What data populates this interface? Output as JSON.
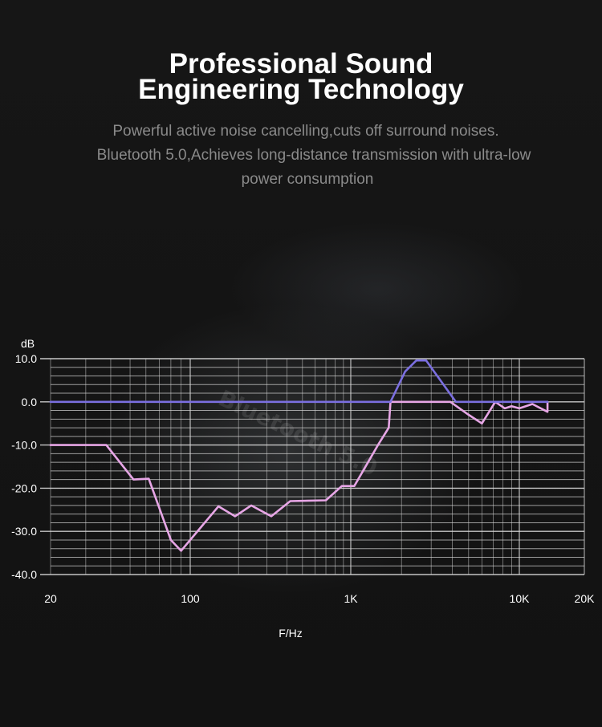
{
  "header": {
    "title_line1": "Professional Sound",
    "title_line2": "Engineering Technology",
    "subtitle_line1": "Powerful active noise cancelling,cuts off surround noises.",
    "subtitle_line2": "Bluetooth 5.0,Achieves long-distance transmission with ultra-low",
    "subtitle_line3": "power consumption"
  },
  "background": {
    "chip_marking": "Bluetooth 5.0"
  },
  "colors": {
    "background": "#141414",
    "grid": "#d9d9d9",
    "series_purple": "#7b6fe0",
    "series_pink": "#e7a6e6"
  },
  "chart_data": {
    "type": "line",
    "title": "",
    "xlabel": "F/Hz",
    "ylabel": "dB",
    "x_scale": "log",
    "xlim": [
      20,
      20000
    ],
    "ylim": [
      -40,
      10
    ],
    "x_tick_labels": [
      "20",
      "100",
      "1K",
      "10K",
      "20K"
    ],
    "x_tick_values": [
      20,
      100,
      1000,
      10000,
      20000
    ],
    "y_tick_labels": [
      "10.0",
      "0.0",
      "-10.0",
      "-20.0",
      "-30.0",
      "-40.0"
    ],
    "y_tick_values": [
      10,
      0,
      -10,
      -20,
      -30,
      -40
    ],
    "grid": true,
    "series": [
      {
        "color": "#7b6fe0",
        "points": [
          [
            20,
            0
          ],
          [
            1720,
            0
          ],
          [
            2100,
            7
          ],
          [
            2450,
            9.6
          ],
          [
            2800,
            9.6
          ],
          [
            3400,
            5
          ],
          [
            4200,
            0
          ],
          [
            13500,
            0
          ]
        ]
      },
      {
        "color": "#e7a6e6",
        "points": [
          [
            20,
            -10
          ],
          [
            38,
            -10
          ],
          [
            52,
            -18
          ],
          [
            62,
            -17.8
          ],
          [
            80,
            -32
          ],
          [
            90,
            -34.5
          ],
          [
            150,
            -24.2
          ],
          [
            190,
            -26.5
          ],
          [
            240,
            -24
          ],
          [
            320,
            -26.5
          ],
          [
            420,
            -23
          ],
          [
            700,
            -22.8
          ],
          [
            880,
            -19.5
          ],
          [
            1050,
            -19.5
          ],
          [
            1450,
            -10
          ],
          [
            1680,
            -6
          ],
          [
            1720,
            0
          ],
          [
            3900,
            0
          ],
          [
            5000,
            -3
          ],
          [
            6000,
            -5
          ],
          [
            7200,
            0
          ],
          [
            8200,
            -1.5
          ],
          [
            9000,
            -1
          ],
          [
            10000,
            -1.5
          ],
          [
            11500,
            -0.5
          ],
          [
            13500,
            -2.3
          ],
          [
            13500,
            0
          ]
        ]
      }
    ]
  }
}
